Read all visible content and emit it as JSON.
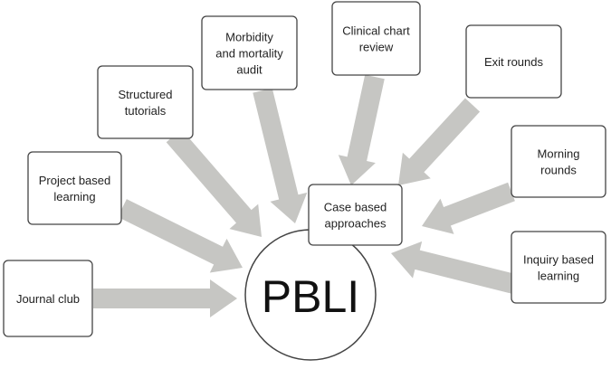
{
  "center": {
    "label": "PBLI"
  },
  "boxes": [
    {
      "id": "journal-club",
      "lines": [
        "Journal club"
      ]
    },
    {
      "id": "project-based-learning",
      "lines": [
        "Project based",
        "learning"
      ]
    },
    {
      "id": "structured-tutorials",
      "lines": [
        "Structured",
        "tutorials"
      ]
    },
    {
      "id": "morbidity-mortality-audit",
      "lines": [
        "Morbidity",
        "and mortality",
        "audit"
      ]
    },
    {
      "id": "clinical-chart-review",
      "lines": [
        "Clinical chart",
        "review"
      ]
    },
    {
      "id": "exit-rounds",
      "lines": [
        "Exit rounds"
      ]
    },
    {
      "id": "morning-rounds",
      "lines": [
        "Morning",
        "rounds"
      ]
    },
    {
      "id": "inquiry-based-learning",
      "lines": [
        "Inquiry based",
        "learning"
      ]
    },
    {
      "id": "case-based-approaches",
      "lines": [
        "Case based",
        "approaches"
      ]
    }
  ],
  "colors": {
    "arrow": "#c6c6c3",
    "box_border": "#444444",
    "text": "#222222"
  }
}
